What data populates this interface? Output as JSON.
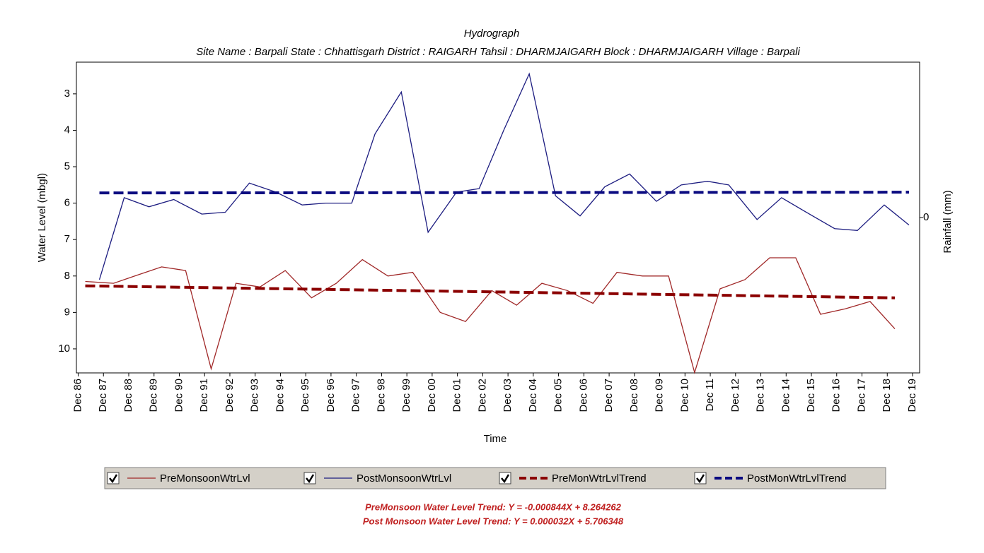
{
  "chart_data": {
    "type": "line",
    "title": "Hydrograph",
    "subtitle": "Site Name : Barpali  State : Chhattisgarh District : RAIGARH  Tahsil : DHARMJAIGARH  Block : DHARMJAIGARH Village : Barpali",
    "x_label": "Time",
    "y_label": "Water Level (mbgl)",
    "y2_label": "Rainfall (mm)",
    "y_inverted": true,
    "xlim": [
      1986.85,
      2020.2
    ],
    "xticks": [
      {
        "value": 1986.92,
        "label": "Dec 86"
      },
      {
        "value": 1987.92,
        "label": "Dec 87"
      },
      {
        "value": 1988.92,
        "label": "Dec 88"
      },
      {
        "value": 1989.92,
        "label": "Dec 89"
      },
      {
        "value": 1990.92,
        "label": "Dec 90"
      },
      {
        "value": 1991.92,
        "label": "Dec 91"
      },
      {
        "value": 1992.92,
        "label": "Dec 92"
      },
      {
        "value": 1993.92,
        "label": "Dec 93"
      },
      {
        "value": 1994.92,
        "label": "Dec 94"
      },
      {
        "value": 1995.92,
        "label": "Dec 95"
      },
      {
        "value": 1996.92,
        "label": "Dec 96"
      },
      {
        "value": 1997.92,
        "label": "Dec 97"
      },
      {
        "value": 1998.92,
        "label": "Dec 98"
      },
      {
        "value": 1999.92,
        "label": "Dec 99"
      },
      {
        "value": 2000.92,
        "label": "Dec 00"
      },
      {
        "value": 2001.92,
        "label": "Dec 01"
      },
      {
        "value": 2002.92,
        "label": "Dec 02"
      },
      {
        "value": 2003.92,
        "label": "Dec 03"
      },
      {
        "value": 2004.92,
        "label": "Dec 04"
      },
      {
        "value": 2005.92,
        "label": "Dec 05"
      },
      {
        "value": 2006.92,
        "label": "Dec 06"
      },
      {
        "value": 2007.92,
        "label": "Dec 07"
      },
      {
        "value": 2008.92,
        "label": "Dec 08"
      },
      {
        "value": 2009.92,
        "label": "Dec 09"
      },
      {
        "value": 2010.92,
        "label": "Dec 10"
      },
      {
        "value": 2011.92,
        "label": "Dec 11"
      },
      {
        "value": 2012.92,
        "label": "Dec 12"
      },
      {
        "value": 2013.92,
        "label": "Dec 13"
      },
      {
        "value": 2014.92,
        "label": "Dec 14"
      },
      {
        "value": 2015.92,
        "label": "Dec 15"
      },
      {
        "value": 2016.92,
        "label": "Dec 16"
      },
      {
        "value": 2017.92,
        "label": "Dec 17"
      },
      {
        "value": 2018.92,
        "label": "Dec 18"
      },
      {
        "value": 2019.92,
        "label": "Dec 19"
      }
    ],
    "ylim": [
      2.13,
      10.66
    ],
    "yticks": [
      3,
      4,
      5,
      6,
      7,
      8,
      9,
      10
    ],
    "y2lim": [
      -1,
      1
    ],
    "y2ticks": [
      0
    ],
    "series": [
      {
        "name": "PreMonsoonWtrLvl",
        "color": "#a02828",
        "dashed": false,
        "x": [
          1987.2,
          1988.32,
          1989.16,
          1990.22,
          1991.17,
          1992.18,
          1993.16,
          1994.11,
          1995.11,
          1996.15,
          1997.13,
          1998.16,
          1999.17,
          2000.15,
          2001.24,
          2002.24,
          2003.28,
          2004.26,
          2005.26,
          2006.27,
          2007.28,
          2008.23,
          2009.24,
          2010.27,
          2011.3,
          2012.31,
          2013.29,
          2014.27,
          2015.3,
          2016.28,
          2017.26,
          2018.24,
          2019.22
        ],
        "values": [
          8.15,
          8.2,
          8.0,
          7.75,
          7.85,
          10.55,
          8.2,
          8.3,
          7.85,
          8.6,
          8.2,
          7.55,
          8.0,
          7.9,
          9.0,
          9.25,
          8.4,
          8.8,
          8.2,
          8.4,
          8.75,
          7.9,
          8.0,
          8.0,
          10.65,
          8.35,
          8.1,
          7.5,
          7.5,
          9.05,
          8.9,
          8.7,
          9.45
        ]
      },
      {
        "name": "PostMonsoonWtrLvl",
        "color": "#1c1c80",
        "dashed": false,
        "x": [
          1987.76,
          1988.74,
          1989.72,
          1990.7,
          1991.81,
          1992.74,
          1993.69,
          1994.75,
          1995.78,
          1996.71,
          1997.74,
          1998.66,
          1999.7,
          2000.76,
          2001.88,
          2002.78,
          2003.75,
          2004.76,
          2005.8,
          2006.77,
          2007.75,
          2008.73,
          2009.79,
          2010.77,
          2011.81,
          2012.65,
          2013.77,
          2014.74,
          2015.72,
          2016.84,
          2017.74,
          2018.8,
          2019.78
        ],
        "values": [
          8.1,
          5.85,
          6.1,
          5.9,
          6.3,
          6.25,
          5.45,
          5.7,
          6.05,
          6.0,
          6.0,
          4.1,
          2.95,
          6.8,
          5.7,
          5.6,
          4.0,
          2.45,
          5.8,
          6.35,
          5.55,
          5.2,
          5.95,
          5.5,
          5.4,
          5.5,
          6.45,
          5.85,
          6.25,
          6.7,
          6.75,
          6.05,
          6.6
        ]
      },
      {
        "name": "PreMonWtrLvlTrend",
        "color": "#8b0000",
        "dashed": true,
        "x": [
          1987.2,
          2019.22
        ],
        "values": [
          8.27,
          8.6
        ]
      },
      {
        "name": "PostMonWtrLvlTrend",
        "color": "#0a0a80",
        "dashed": true,
        "x": [
          1987.76,
          2019.78
        ],
        "values": [
          5.72,
          5.7
        ]
      }
    ],
    "annotations": [
      "PreMonsoon Water Level Trend: Y = -0.000844X + 8.264262",
      "Post Monsoon Water Level Trend: Y = 0.000032X + 5.706348"
    ]
  }
}
